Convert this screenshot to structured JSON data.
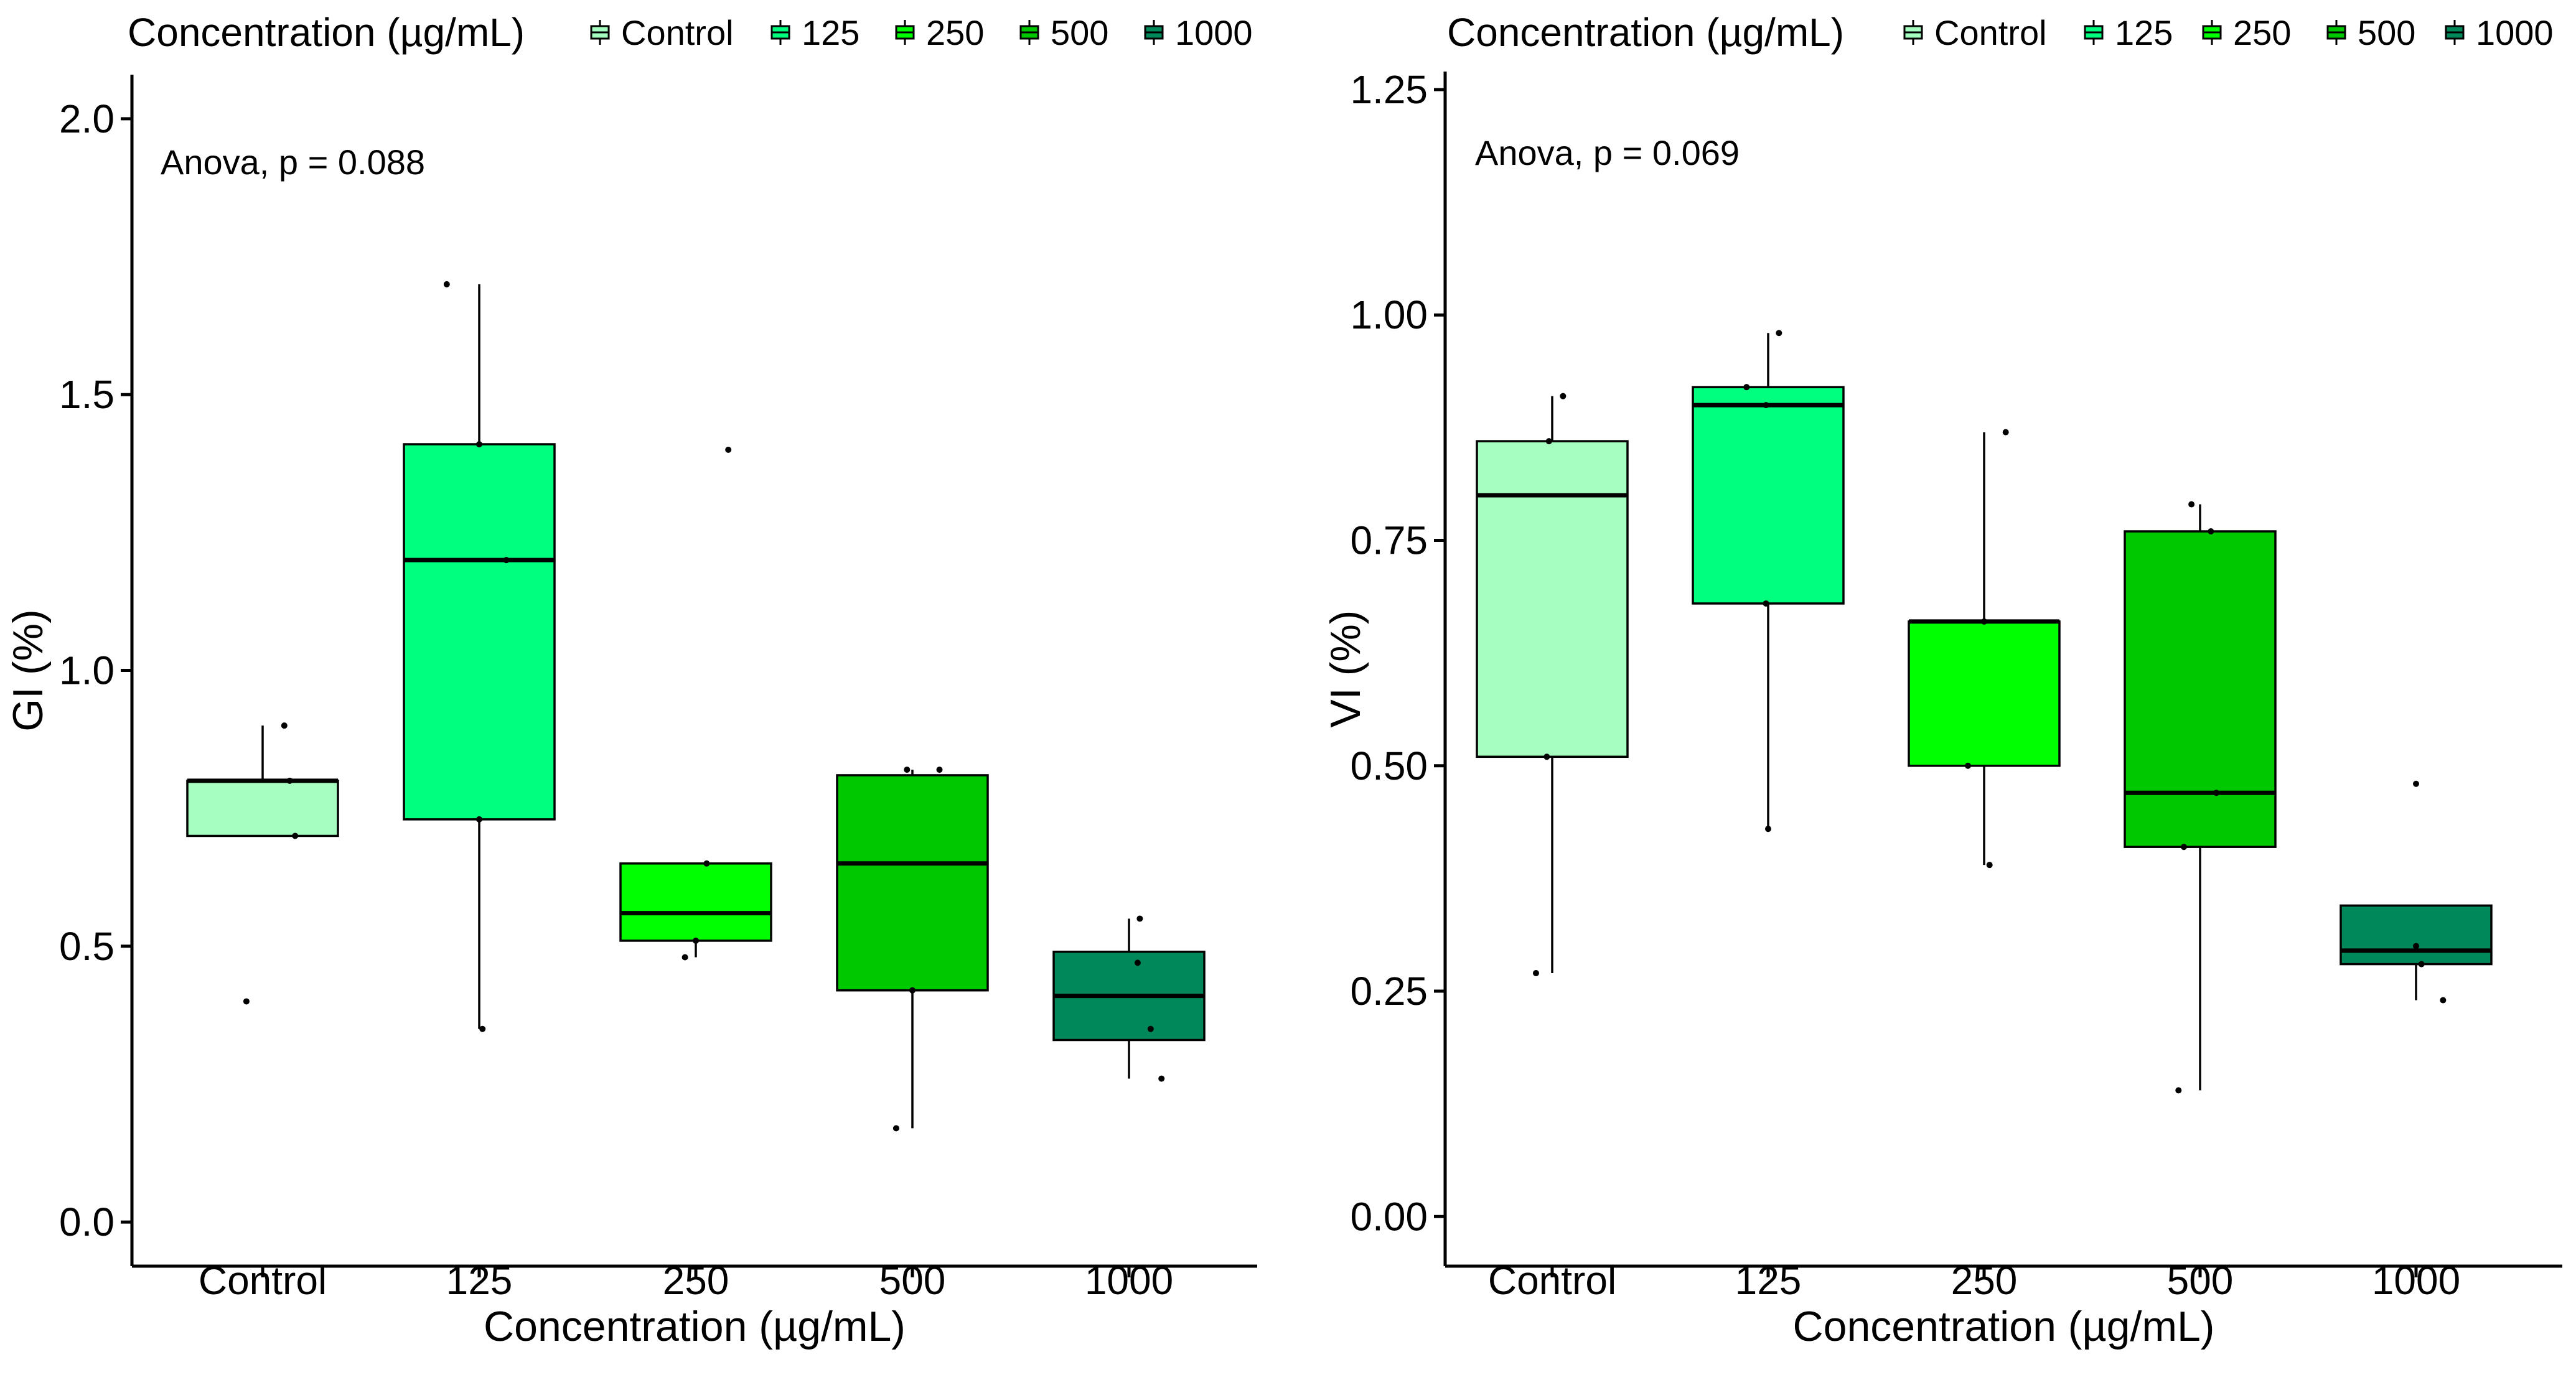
{
  "colors": {
    "Control": "#a6ffc0",
    "125": "#00ff7f",
    "250": "#00ff00",
    "500": "#00c800",
    "1000": "#00875a"
  },
  "chart_data": [
    {
      "type": "box",
      "id": "gi",
      "legend_title": "Concentration (µg/mL)",
      "legend_entries": [
        "Control",
        "125",
        "250",
        "500",
        "1000"
      ],
      "categories": [
        "Control",
        "125",
        "250",
        "500",
        "1000"
      ],
      "xlabel": "Concentration (µg/mL)",
      "ylabel": "GI (%)",
      "ylim": [
        -0.08,
        2.08
      ],
      "yticks": [
        0.0,
        0.5,
        1.0,
        1.5,
        2.0
      ],
      "ytick_labels": [
        "0.0",
        "0.5",
        "1.0",
        "1.5",
        "2.0"
      ],
      "annotation": "Anova, p = 0.088",
      "grid": false,
      "legend_position": "top",
      "boxes": [
        {
          "category": "Control",
          "whisker_low": 0.7,
          "q1": 0.7,
          "median": 0.8,
          "q3": 0.8,
          "whisker_high": 0.9
        },
        {
          "category": "125",
          "whisker_low": 0.35,
          "q1": 0.73,
          "median": 1.2,
          "q3": 1.41,
          "whisker_high": 1.7
        },
        {
          "category": "250",
          "whisker_low": 0.48,
          "q1": 0.51,
          "median": 0.56,
          "q3": 0.65,
          "whisker_high": 0.65
        },
        {
          "category": "500",
          "whisker_low": 0.17,
          "q1": 0.42,
          "median": 0.65,
          "q3": 0.81,
          "whisker_high": 0.82
        },
        {
          "category": "1000",
          "whisker_low": 0.26,
          "q1": 0.33,
          "median": 0.41,
          "q3": 0.49,
          "whisker_high": 0.55
        }
      ],
      "points": [
        {
          "category": "Control",
          "x_offset": -0.15,
          "y": 0.4
        },
        {
          "category": "Control",
          "x_offset": 0.2,
          "y": 0.9
        },
        {
          "category": "Control",
          "x_offset": 0.3,
          "y": 0.7
        },
        {
          "category": "Control",
          "x_offset": 0.25,
          "y": 0.8
        },
        {
          "category": "125",
          "x_offset": -0.3,
          "y": 1.7
        },
        {
          "category": "125",
          "x_offset": 0.0,
          "y": 1.41
        },
        {
          "category": "125",
          "x_offset": 0.03,
          "y": 0.35
        },
        {
          "category": "125",
          "x_offset": 0.25,
          "y": 1.2
        },
        {
          "category": "125",
          "x_offset": 0.0,
          "y": 0.73
        },
        {
          "category": "250",
          "x_offset": 0.3,
          "y": 1.4
        },
        {
          "category": "250",
          "x_offset": -0.1,
          "y": 0.48
        },
        {
          "category": "250",
          "x_offset": 0.1,
          "y": 0.65
        },
        {
          "category": "250",
          "x_offset": 0.0,
          "y": 0.51
        },
        {
          "category": "500",
          "x_offset": -0.15,
          "y": 0.17
        },
        {
          "category": "500",
          "x_offset": 0.25,
          "y": 0.82
        },
        {
          "category": "500",
          "x_offset": -0.05,
          "y": 0.82
        },
        {
          "category": "500",
          "x_offset": 0.0,
          "y": 0.42
        },
        {
          "category": "1000",
          "x_offset": 0.1,
          "y": 0.55
        },
        {
          "category": "1000",
          "x_offset": 0.3,
          "y": 0.26
        },
        {
          "category": "1000",
          "x_offset": 0.2,
          "y": 0.35
        },
        {
          "category": "1000",
          "x_offset": 0.08,
          "y": 0.47
        }
      ]
    },
    {
      "type": "box",
      "id": "vi",
      "legend_title": "Concentration (µg/mL)",
      "legend_entries": [
        "Control",
        "125",
        "250",
        "500",
        "1000"
      ],
      "categories": [
        "Control",
        "125",
        "250",
        "500",
        "1000"
      ],
      "xlabel": "Concentration (µg/mL)",
      "ylabel": "VI (%)",
      "ylim": [
        -0.055,
        1.27
      ],
      "yticks": [
        0.0,
        0.25,
        0.5,
        0.75,
        1.0,
        1.25
      ],
      "ytick_labels": [
        "0.00",
        "0.25",
        "0.50",
        "0.75",
        "1.00",
        "1.25"
      ],
      "annotation": "Anova, p = 0.069",
      "grid": false,
      "legend_position": "top",
      "boxes": [
        {
          "category": "Control",
          "whisker_low": 0.27,
          "q1": 0.51,
          "median": 0.8,
          "q3": 0.86,
          "whisker_high": 0.91
        },
        {
          "category": "125",
          "whisker_low": 0.43,
          "q1": 0.68,
          "median": 0.9,
          "q3": 0.92,
          "whisker_high": 0.98
        },
        {
          "category": "250",
          "whisker_low": 0.39,
          "q1": 0.5,
          "median": 0.66,
          "q3": 0.66,
          "whisker_high": 0.87
        },
        {
          "category": "500",
          "whisker_low": 0.14,
          "q1": 0.41,
          "median": 0.47,
          "q3": 0.76,
          "whisker_high": 0.79
        },
        {
          "category": "1000",
          "whisker_low": 0.24,
          "q1": 0.28,
          "median": 0.295,
          "q3": 0.345,
          "whisker_high": 0.345
        }
      ],
      "points": [
        {
          "category": "Control",
          "x_offset": -0.15,
          "y": 0.27
        },
        {
          "category": "Control",
          "x_offset": 0.1,
          "y": 0.91
        },
        {
          "category": "Control",
          "x_offset": -0.03,
          "y": 0.86
        },
        {
          "category": "Control",
          "x_offset": -0.05,
          "y": 0.51
        },
        {
          "category": "125",
          "x_offset": 0.1,
          "y": 0.98
        },
        {
          "category": "125",
          "x_offset": -0.2,
          "y": 0.92
        },
        {
          "category": "125",
          "x_offset": -0.02,
          "y": 0.9
        },
        {
          "category": "125",
          "x_offset": 0.0,
          "y": 0.43
        },
        {
          "category": "125",
          "x_offset": -0.02,
          "y": 0.68
        },
        {
          "category": "250",
          "x_offset": 0.2,
          "y": 0.87
        },
        {
          "category": "250",
          "x_offset": 0.05,
          "y": 0.39
        },
        {
          "category": "250",
          "x_offset": -0.15,
          "y": 0.5
        },
        {
          "category": "250",
          "x_offset": 0.0,
          "y": 0.66
        },
        {
          "category": "500",
          "x_offset": -0.2,
          "y": 0.14
        },
        {
          "category": "500",
          "x_offset": -0.08,
          "y": 0.79
        },
        {
          "category": "500",
          "x_offset": 0.1,
          "y": 0.76
        },
        {
          "category": "500",
          "x_offset": 0.15,
          "y": 0.47
        },
        {
          "category": "500",
          "x_offset": -0.15,
          "y": 0.41
        },
        {
          "category": "1000",
          "x_offset": 0.0,
          "y": 0.48
        },
        {
          "category": "1000",
          "x_offset": 0.25,
          "y": 0.24
        },
        {
          "category": "1000",
          "x_offset": 0.0,
          "y": 0.3
        },
        {
          "category": "1000",
          "x_offset": 0.05,
          "y": 0.28
        }
      ]
    }
  ]
}
